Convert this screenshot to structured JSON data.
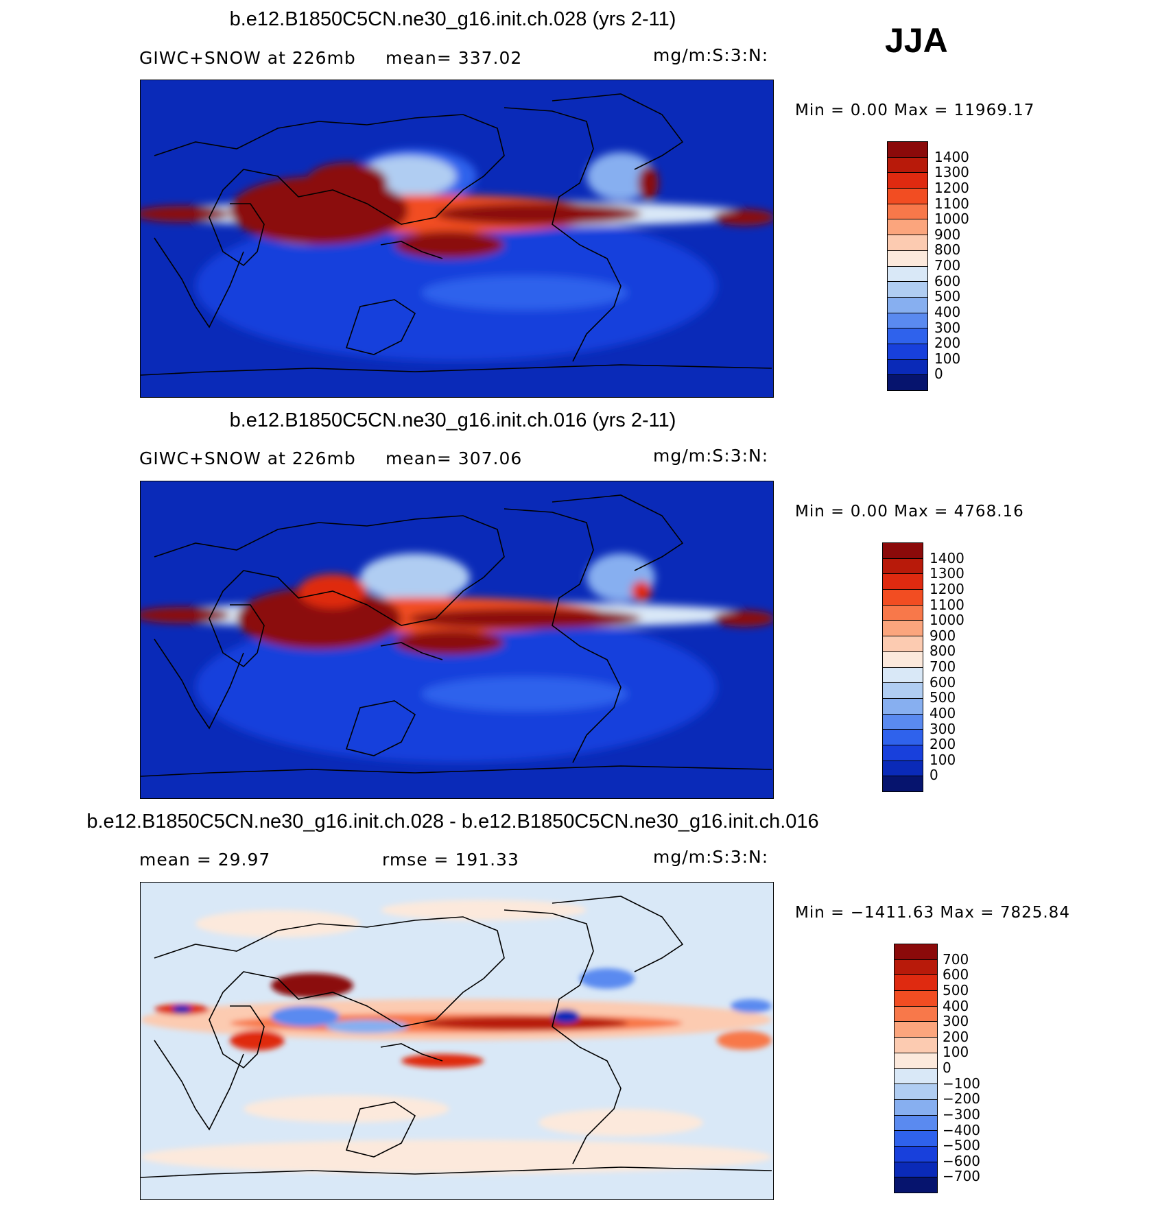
{
  "season": "JJA",
  "panels": [
    {
      "id": "case1",
      "title": "b.e12.B1850C5CN.ne30_g16.init.ch.028 (yrs 2-11)",
      "variable": "GIWC+SNOW at 226mb",
      "stat": "mean=  337.02",
      "units": "mg/m:S:3:N:",
      "minmax": "Min =    0.00  Max =  11969.17",
      "colorbar_labels": [
        "1400",
        "1300",
        "1200",
        "1100",
        "1000",
        "900",
        "800",
        "700",
        "600",
        "500",
        "400",
        "300",
        "200",
        "100",
        "0"
      ],
      "colors": [
        "#8b0a0a",
        "#b81a0a",
        "#df2a10",
        "#f24d22",
        "#f8784a",
        "#fba57d",
        "#fccbb1",
        "#fce9dc",
        "#d9e8f7",
        "#b0cdf2",
        "#87aff0",
        "#5a8af0",
        "#2f62ec",
        "#1840dc",
        "#0a2ab8",
        "#06146e"
      ]
    },
    {
      "id": "case2",
      "title": "b.e12.B1850C5CN.ne30_g16.init.ch.016 (yrs 2-11)",
      "variable": "GIWC+SNOW at 226mb",
      "stat": "mean=  307.06",
      "units": "mg/m:S:3:N:",
      "minmax": "Min =    0.00  Max =  4768.16",
      "colorbar_labels": [
        "1400",
        "1300",
        "1200",
        "1100",
        "1000",
        "900",
        "800",
        "700",
        "600",
        "500",
        "400",
        "300",
        "200",
        "100",
        "0"
      ],
      "colors": [
        "#8b0a0a",
        "#b81a0a",
        "#df2a10",
        "#f24d22",
        "#f8784a",
        "#fba57d",
        "#fccbb1",
        "#fce9dc",
        "#d9e8f7",
        "#b0cdf2",
        "#87aff0",
        "#5a8af0",
        "#2f62ec",
        "#1840dc",
        "#0a2ab8",
        "#06146e"
      ]
    },
    {
      "id": "diff",
      "title": "b.e12.B1850C5CN.ne30_g16.init.ch.028 - b.e12.B1850C5CN.ne30_g16.init.ch.016",
      "variable": "mean =   29.97",
      "stat": "rmse =  191.33",
      "units": "mg/m:S:3:N:",
      "minmax": "Min = −1411.63  Max =  7825.84",
      "colorbar_labels": [
        "700",
        "600",
        "500",
        "400",
        "300",
        "200",
        "100",
        "0",
        "−100",
        "−200",
        "−300",
        "−400",
        "−500",
        "−600",
        "−700"
      ],
      "colors": [
        "#8b0a0a",
        "#b81a0a",
        "#df2a10",
        "#f24d22",
        "#f8784a",
        "#fba57d",
        "#fccbb1",
        "#fce9dc",
        "#d9e8f7",
        "#b0cdf2",
        "#87aff0",
        "#5a8af0",
        "#2f62ec",
        "#1840dc",
        "#0a2ab8",
        "#06146e"
      ]
    }
  ]
}
